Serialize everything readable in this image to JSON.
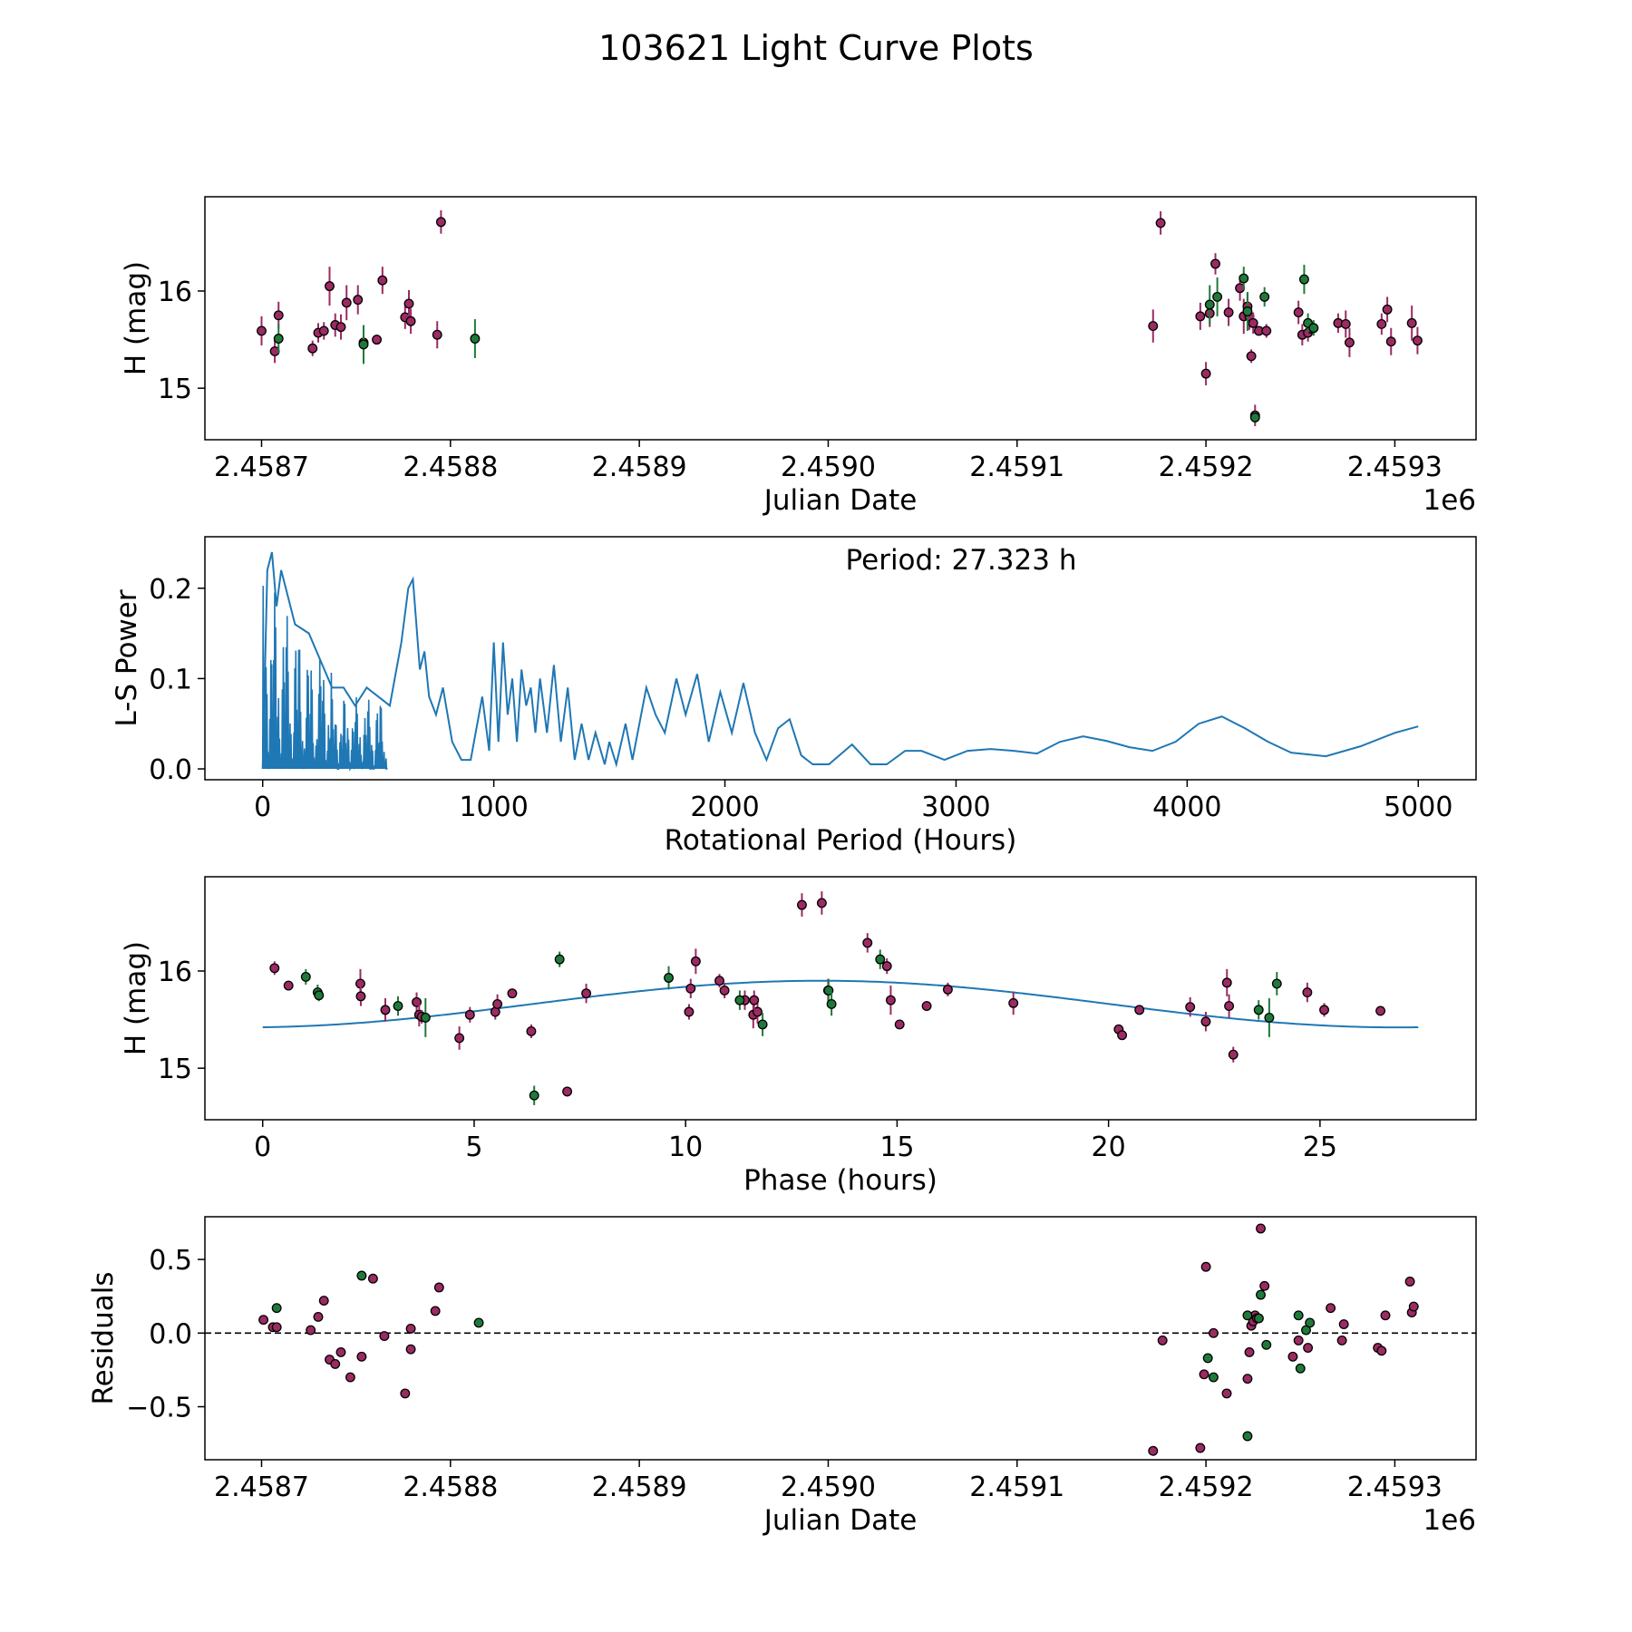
{
  "figure_title": "103621 Light Curve Plots",
  "colors": {
    "red_points": "#9c2a63",
    "green_points": "#1f7a3a",
    "curve": "#1f77b4",
    "axes": "#000000",
    "reference_line": "#000000"
  },
  "chart_data": [
    {
      "id": "lightcurve",
      "type": "scatter",
      "title": "",
      "xlabel": "Julian Date",
      "ylabel": "H (mag)",
      "x_offset_label": "1e6",
      "xlim": [
        2.45867,
        2.459343
      ],
      "ylim": [
        14.47,
        16.97
      ],
      "inverted_y": false,
      "xticks": [
        2.4587,
        2.4588,
        2.4589,
        2.459,
        2.4591,
        2.4592,
        2.4593
      ],
      "xtick_labels": [
        "2.4587",
        "2.4588",
        "2.4589",
        "2.4590",
        "2.4591",
        "2.4592",
        "2.4593"
      ],
      "yticks": [
        15,
        16
      ],
      "ytick_labels": [
        "15",
        "16"
      ],
      "series": [
        {
          "name": "red",
          "color_key": "red_points",
          "x": [
            2.4587,
            2.458707,
            2.458709,
            2.458727,
            2.45873,
            2.458733,
            2.458736,
            2.458739,
            2.458742,
            2.458745,
            2.458751,
            2.458754,
            2.458761,
            2.458764,
            2.458776,
            2.458778,
            2.458779,
            2.458793,
            2.458795,
            2.459172,
            2.459176,
            2.459197,
            2.4592,
            2.459202,
            2.459205,
            2.459212,
            2.459218,
            2.45922,
            2.459222,
            2.459223,
            2.459224,
            2.459225,
            2.459226,
            2.459228,
            2.459232,
            2.459249,
            2.459251,
            2.459254,
            2.459256,
            2.45927,
            2.459274,
            2.459276,
            2.459293,
            2.459296,
            2.459298,
            2.459309,
            2.459312
          ],
          "y": [
            15.59,
            15.38,
            15.75,
            15.41,
            15.57,
            15.59,
            16.05,
            15.65,
            15.63,
            15.88,
            15.91,
            15.47,
            15.5,
            16.11,
            15.73,
            15.87,
            15.69,
            15.55,
            16.71,
            15.64,
            16.7,
            15.74,
            15.15,
            15.77,
            16.28,
            15.78,
            16.03,
            15.74,
            15.84,
            15.74,
            15.33,
            15.67,
            14.72,
            15.59,
            15.59,
            15.78,
            15.55,
            15.57,
            15.61,
            15.67,
            15.66,
            15.47,
            15.66,
            15.81,
            15.48,
            15.67,
            15.49
          ],
          "yerr": [
            0.15,
            0.12,
            0.14,
            0.08,
            0.1,
            0.09,
            0.2,
            0.12,
            0.13,
            0.18,
            0.15,
            0.06,
            0.05,
            0.14,
            0.12,
            0.14,
            0.13,
            0.14,
            0.12,
            0.17,
            0.12,
            0.14,
            0.12,
            0.14,
            0.11,
            0.14,
            0.13,
            0.18,
            0.13,
            0.14,
            0.07,
            0.11,
            0.11,
            0.04,
            0.07,
            0.12,
            0.11,
            0.09,
            0.05,
            0.1,
            0.14,
            0.15,
            0.11,
            0.13,
            0.14,
            0.18,
            0.14
          ]
        },
        {
          "name": "green",
          "color_key": "green_points",
          "x": [
            2.458709,
            2.458754,
            2.458813,
            2.459202,
            2.459206,
            2.459222,
            2.45922,
            2.459231,
            2.459226,
            2.459252,
            2.459254,
            2.459257
          ],
          "y": [
            15.51,
            15.45,
            15.51,
            15.86,
            15.94,
            15.79,
            16.13,
            15.94,
            14.7,
            16.12,
            15.67,
            15.62
          ],
          "yerr": [
            0.15,
            0.2,
            0.2,
            0.2,
            0.2,
            0.2,
            0.12,
            0.1,
            0.06,
            0.15,
            0.1,
            0.08
          ]
        }
      ]
    },
    {
      "id": "periodogram",
      "type": "line",
      "title": "",
      "annotation": "Period: 27.323 h",
      "xlabel": "Rotational Period (Hours)",
      "ylabel": "L-S Power",
      "xlim": [
        -250,
        5250
      ],
      "ylim": [
        -0.012,
        0.257
      ],
      "xticks": [
        0,
        1000,
        2000,
        3000,
        4000,
        5000
      ],
      "xtick_labels": [
        "0",
        "1000",
        "2000",
        "3000",
        "4000",
        "5000"
      ],
      "yticks": [
        0.0,
        0.1,
        0.2
      ],
      "ytick_labels": [
        "0.0",
        "0.1",
        "0.2"
      ],
      "series": [
        {
          "name": "L-S Power",
          "color_key": "curve",
          "x": [
            0,
            20,
            40,
            60,
            80,
            100,
            140,
            200,
            250,
            300,
            350,
            400,
            450,
            500,
            550,
            600,
            630,
            650,
            680,
            700,
            720,
            750,
            780,
            800,
            820,
            860,
            900,
            950,
            980,
            1000,
            1020,
            1040,
            1060,
            1080,
            1100,
            1120,
            1140,
            1160,
            1180,
            1200,
            1230,
            1260,
            1290,
            1320,
            1350,
            1380,
            1410,
            1440,
            1480,
            1500,
            1530,
            1570,
            1600,
            1630,
            1660,
            1700,
            1740,
            1790,
            1830,
            1880,
            1930,
            1980,
            2030,
            2080,
            2130,
            2180,
            2230,
            2280,
            2330,
            2380,
            2450,
            2550,
            2630,
            2700,
            2780,
            2850,
            2950,
            3050,
            3150,
            3250,
            3350,
            3450,
            3550,
            3650,
            3750,
            3850,
            3950,
            4050,
            4150,
            4250,
            4350,
            4450,
            4600,
            4750,
            4900,
            5000
          ],
          "y": [
            0.0,
            0.22,
            0.24,
            0.18,
            0.22,
            0.2,
            0.16,
            0.15,
            0.12,
            0.09,
            0.09,
            0.07,
            0.09,
            0.08,
            0.07,
            0.14,
            0.2,
            0.21,
            0.11,
            0.13,
            0.08,
            0.06,
            0.09,
            0.06,
            0.03,
            0.01,
            0.01,
            0.08,
            0.02,
            0.14,
            0.03,
            0.14,
            0.06,
            0.1,
            0.03,
            0.11,
            0.07,
            0.09,
            0.04,
            0.1,
            0.04,
            0.115,
            0.03,
            0.09,
            0.01,
            0.05,
            0.01,
            0.04,
            0.005,
            0.03,
            0.005,
            0.05,
            0.01,
            0.05,
            0.09,
            0.06,
            0.04,
            0.1,
            0.06,
            0.105,
            0.03,
            0.085,
            0.04,
            0.095,
            0.04,
            0.01,
            0.045,
            0.055,
            0.015,
            0.005,
            0.005,
            0.027,
            0.005,
            0.005,
            0.02,
            0.02,
            0.01,
            0.02,
            0.022,
            0.02,
            0.017,
            0.03,
            0.036,
            0.031,
            0.024,
            0.02,
            0.03,
            0.05,
            0.058,
            0.045,
            0.03,
            0.018,
            0.014,
            0.025,
            0.04,
            0.047
          ]
        }
      ]
    },
    {
      "id": "phased",
      "type": "scatter",
      "title": "",
      "xlabel": "Phase (hours)",
      "ylabel": "H (mag)",
      "xlim": [
        -1.3663,
        28.69
      ],
      "ylim": [
        14.47,
        16.97
      ],
      "xticks": [
        0,
        5,
        10,
        15,
        20,
        25
      ],
      "xtick_labels": [
        "0",
        "5",
        "10",
        "15",
        "20",
        "25"
      ],
      "yticks": [
        15,
        16
      ],
      "ytick_labels": [
        "15",
        "16"
      ],
      "fit_curve": {
        "name": "sine fit",
        "color_key": "curve",
        "period": 27.323,
        "mean": 15.66,
        "amplitude": 0.24,
        "x_max": 27.323,
        "peak_phase": 13.2
      },
      "series": [
        {
          "name": "red",
          "color_key": "red_points",
          "x": [
            0.28,
            0.61,
            2.31,
            2.32,
            2.9,
            3.64,
            3.7,
            3.76,
            4.65,
            4.9,
            5.5,
            5.55,
            5.9,
            6.35,
            7.2,
            7.65,
            10.08,
            10.12,
            10.24,
            10.8,
            10.92,
            11.4,
            11.6,
            11.7,
            11.62,
            12.75,
            13.22,
            13.37,
            14.3,
            14.76,
            14.85,
            15.06,
            15.7,
            16.2,
            17.75,
            20.24,
            20.32,
            20.73,
            21.93,
            22.3,
            22.8,
            22.85,
            22.95,
            24.7,
            25.1,
            26.43
          ],
          "y": [
            16.03,
            15.85,
            15.87,
            15.74,
            15.6,
            15.68,
            15.55,
            15.53,
            15.31,
            15.55,
            15.58,
            15.66,
            15.77,
            15.38,
            14.76,
            15.77,
            15.58,
            15.82,
            16.1,
            15.9,
            15.8,
            15.7,
            15.55,
            15.58,
            15.7,
            16.68,
            16.7,
            15.8,
            16.29,
            16.05,
            15.7,
            15.45,
            15.64,
            15.81,
            15.67,
            15.4,
            15.34,
            15.6,
            15.63,
            15.48,
            15.88,
            15.64,
            15.14,
            15.78,
            15.6,
            15.59
          ],
          "yerr": [
            0.07,
            0.05,
            0.15,
            0.1,
            0.12,
            0.1,
            0.12,
            0.07,
            0.12,
            0.08,
            0.08,
            0.1,
            0.05,
            0.07,
            0.05,
            0.1,
            0.08,
            0.1,
            0.13,
            0.07,
            0.08,
            0.1,
            0.14,
            0.12,
            0.1,
            0.12,
            0.12,
            0.12,
            0.1,
            0.08,
            0.15,
            0.04,
            0.05,
            0.07,
            0.12,
            0.05,
            0.05,
            0.05,
            0.1,
            0.1,
            0.14,
            0.12,
            0.08,
            0.1,
            0.07,
            0.05
          ]
        },
        {
          "name": "green",
          "color_key": "green_points",
          "x": [
            1.02,
            1.3,
            1.33,
            3.2,
            3.85,
            6.42,
            7.02,
            9.6,
            11.28,
            11.82,
            13.38,
            13.45,
            14.6,
            23.55,
            23.8,
            23.98
          ],
          "y": [
            15.94,
            15.78,
            15.75,
            15.64,
            15.52,
            14.72,
            16.12,
            15.93,
            15.7,
            15.45,
            15.8,
            15.66,
            16.12,
            15.6,
            15.52,
            15.87
          ],
          "yerr": [
            0.08,
            0.08,
            0.06,
            0.1,
            0.2,
            0.1,
            0.08,
            0.12,
            0.1,
            0.12,
            0.12,
            0.12,
            0.1,
            0.1,
            0.2,
            0.12
          ]
        }
      ]
    },
    {
      "id": "residuals",
      "type": "scatter",
      "title": "",
      "xlabel": "Julian Date",
      "ylabel": "Residuals",
      "x_offset_label": "1e6",
      "xlim": [
        2.45867,
        2.459343
      ],
      "ylim": [
        -0.86,
        0.79
      ],
      "xticks": [
        2.4587,
        2.4588,
        2.4589,
        2.459,
        2.4591,
        2.4592,
        2.4593
      ],
      "xtick_labels": [
        "2.4587",
        "2.4588",
        "2.4589",
        "2.4590",
        "2.4591",
        "2.4592",
        "2.4593"
      ],
      "yticks": [
        -0.5,
        0.0,
        0.5
      ],
      "ytick_labels": [
        "−0.5",
        "0.0",
        "0.5"
      ],
      "reference_line": {
        "y": 0.0,
        "style": "dashed",
        "color_key": "reference_line"
      },
      "series": [
        {
          "name": "red",
          "color_key": "red_points",
          "x": [
            2.458701,
            2.458706,
            2.458708,
            2.458726,
            2.45873,
            2.458733,
            2.458736,
            2.458739,
            2.458742,
            2.458747,
            2.458753,
            2.458759,
            2.458765,
            2.458776,
            2.458779,
            2.458779,
            2.458792,
            2.458794,
            2.459172,
            2.459177,
            2.459197,
            2.459199,
            2.4592,
            2.459204,
            2.459211,
            2.459222,
            2.459223,
            2.459224,
            2.459225,
            2.459226,
            2.459227,
            2.459229,
            2.459231,
            2.459246,
            2.459249,
            2.459254,
            2.459266,
            2.459272,
            2.459273,
            2.459291,
            2.459293,
            2.459295,
            2.459308,
            2.459309,
            2.45931
          ],
          "y": [
            0.09,
            0.04,
            0.04,
            0.02,
            0.11,
            0.22,
            -0.18,
            -0.21,
            -0.13,
            -0.3,
            -0.16,
            0.37,
            -0.02,
            -0.41,
            -0.11,
            0.03,
            0.15,
            0.31,
            -0.8,
            -0.05,
            -0.78,
            -0.28,
            0.45,
            0.0,
            -0.41,
            -0.31,
            -0.13,
            0.05,
            0.08,
            0.12,
            0.1,
            0.71,
            0.32,
            -0.16,
            -0.05,
            -0.1,
            0.17,
            -0.05,
            0.06,
            -0.1,
            -0.12,
            0.12,
            0.35,
            0.14,
            0.18
          ]
        },
        {
          "name": "green",
          "color_key": "green_points",
          "x": [
            2.458708,
            2.458753,
            2.458815,
            2.459201,
            2.459204,
            2.459222,
            2.459222,
            2.459228,
            2.459229,
            2.459232,
            2.459249,
            2.45925,
            2.459253,
            2.459255
          ],
          "y": [
            0.17,
            0.39,
            0.07,
            -0.17,
            -0.3,
            0.12,
            -0.7,
            0.1,
            0.26,
            -0.08,
            0.12,
            -0.24,
            0.02,
            0.07
          ]
        }
      ]
    }
  ]
}
